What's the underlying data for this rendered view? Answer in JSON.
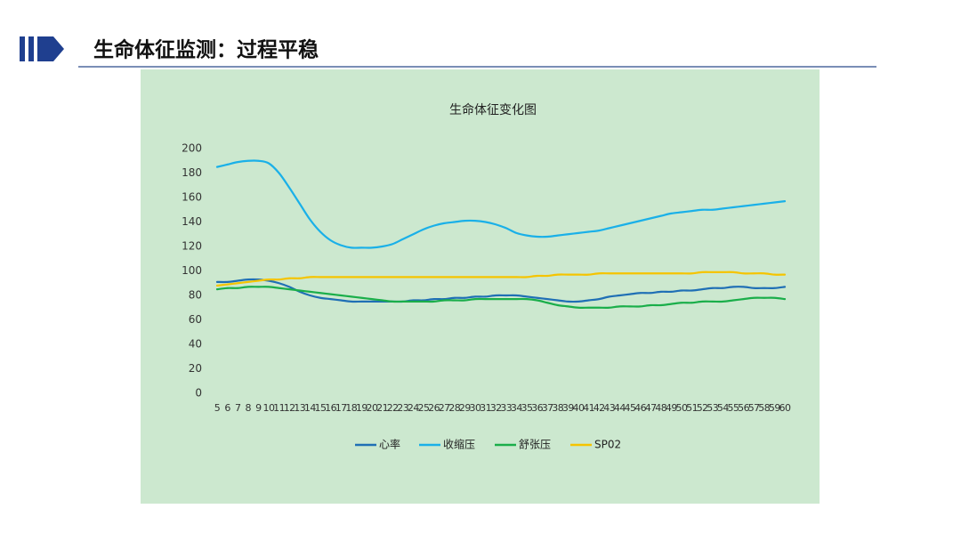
{
  "header": {
    "title": "生命体征监测：过程平稳"
  },
  "chart_data": {
    "type": "line",
    "title": "生命体征变化图",
    "categories": [
      5,
      6,
      7,
      8,
      9,
      10,
      11,
      12,
      13,
      14,
      15,
      16,
      17,
      18,
      19,
      20,
      21,
      22,
      23,
      24,
      25,
      26,
      27,
      28,
      29,
      30,
      31,
      32,
      33,
      34,
      35,
      36,
      37,
      38,
      39,
      40,
      41,
      42,
      43,
      44,
      45,
      46,
      47,
      48,
      49,
      50,
      51,
      52,
      53,
      54,
      55,
      56,
      57,
      58,
      59,
      60
    ],
    "series": [
      {
        "name": "心率",
        "color": "#1f6fb5",
        "values": [
          91,
          91,
          92,
          93,
          93,
          92,
          90,
          87,
          83,
          80,
          78,
          77,
          76,
          75,
          75,
          75,
          75,
          75,
          75,
          76,
          76,
          77,
          77,
          78,
          78,
          79,
          79,
          80,
          80,
          80,
          79,
          78,
          77,
          76,
          75,
          75,
          76,
          77,
          79,
          80,
          81,
          82,
          82,
          83,
          83,
          84,
          84,
          85,
          86,
          86,
          87,
          87,
          86,
          86,
          86,
          87
        ]
      },
      {
        "name": "收缩压",
        "color": "#1ab0e8",
        "values": [
          185,
          187,
          189,
          190,
          190,
          188,
          180,
          168,
          155,
          142,
          132,
          125,
          121,
          119,
          119,
          119,
          120,
          122,
          126,
          130,
          134,
          137,
          139,
          140,
          141,
          141,
          140,
          138,
          135,
          131,
          129,
          128,
          128,
          129,
          130,
          131,
          132,
          133,
          135,
          137,
          139,
          141,
          143,
          145,
          147,
          148,
          149,
          150,
          150,
          151,
          152,
          153,
          154,
          155,
          156,
          157
        ]
      },
      {
        "name": "舒张压",
        "color": "#1aae4a",
        "values": [
          85,
          86,
          86,
          87,
          87,
          87,
          86,
          85,
          84,
          83,
          82,
          81,
          80,
          79,
          78,
          77,
          76,
          75,
          75,
          75,
          75,
          75,
          76,
          76,
          76,
          77,
          77,
          77,
          77,
          77,
          77,
          76,
          74,
          72,
          71,
          70,
          70,
          70,
          70,
          71,
          71,
          71,
          72,
          72,
          73,
          74,
          74,
          75,
          75,
          75,
          76,
          77,
          78,
          78,
          78,
          77
        ]
      },
      {
        "name": "SP02",
        "color": "#f5c400",
        "values": [
          88,
          89,
          90,
          91,
          92,
          93,
          93,
          94,
          94,
          95,
          95,
          95,
          95,
          95,
          95,
          95,
          95,
          95,
          95,
          95,
          95,
          95,
          95,
          95,
          95,
          95,
          95,
          95,
          95,
          95,
          95,
          96,
          96,
          97,
          97,
          97,
          97,
          98,
          98,
          98,
          98,
          98,
          98,
          98,
          98,
          98,
          98,
          99,
          99,
          99,
          99,
          98,
          98,
          98,
          97,
          97
        ]
      }
    ],
    "ylim": [
      0,
      200
    ],
    "yticks": [
      0,
      20,
      40,
      60,
      80,
      100,
      120,
      140,
      160,
      180,
      200
    ],
    "legend": "bottom"
  }
}
